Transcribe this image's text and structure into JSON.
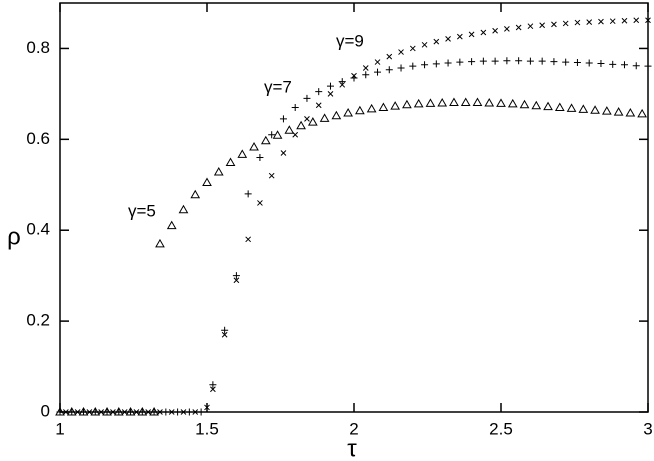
{
  "chart_data": {
    "type": "scatter",
    "x_label": "τ",
    "y_label": "ρ",
    "xlim": [
      1,
      3
    ],
    "ylim": [
      0,
      0.9
    ],
    "xticks": [
      1,
      1.5,
      2,
      2.5,
      3
    ],
    "yticks": [
      0,
      0.2,
      0.4,
      0.6,
      0.8
    ],
    "series": [
      {
        "name": "γ=5",
        "color": "#000000",
        "marker": "triangle",
        "x": [
          1.0,
          1.04,
          1.08,
          1.12,
          1.16,
          1.2,
          1.24,
          1.28,
          1.32,
          1.34,
          1.38,
          1.42,
          1.46,
          1.5,
          1.54,
          1.58,
          1.62,
          1.66,
          1.7,
          1.74,
          1.78,
          1.82,
          1.86,
          1.9,
          1.94,
          1.98,
          2.02,
          2.06,
          2.1,
          2.14,
          2.18,
          2.22,
          2.26,
          2.3,
          2.34,
          2.38,
          2.42,
          2.46,
          2.5,
          2.54,
          2.58,
          2.62,
          2.66,
          2.7,
          2.74,
          2.78,
          2.82,
          2.86,
          2.9,
          2.94,
          2.98
        ],
        "values": [
          0,
          0,
          0,
          0,
          0,
          0,
          0,
          0,
          0,
          0.37,
          0.41,
          0.445,
          0.478,
          0.505,
          0.528,
          0.549,
          0.567,
          0.583,
          0.597,
          0.609,
          0.62,
          0.63,
          0.638,
          0.646,
          0.652,
          0.658,
          0.663,
          0.667,
          0.67,
          0.673,
          0.676,
          0.678,
          0.679,
          0.68,
          0.681,
          0.681,
          0.681,
          0.68,
          0.679,
          0.678,
          0.676,
          0.674,
          0.672,
          0.67,
          0.668,
          0.666,
          0.664,
          0.662,
          0.66,
          0.658,
          0.656
        ]
      },
      {
        "name": "γ=7",
        "color": "#000000",
        "marker": "plus",
        "x": [
          1.0,
          1.04,
          1.08,
          1.12,
          1.16,
          1.2,
          1.24,
          1.28,
          1.32,
          1.36,
          1.4,
          1.44,
          1.48,
          1.52,
          1.56,
          1.6,
          1.64,
          1.68,
          1.72,
          1.76,
          1.8,
          1.84,
          1.88,
          1.92,
          1.96,
          2.0,
          2.04,
          2.08,
          2.12,
          2.16,
          2.2,
          2.24,
          2.28,
          2.32,
          2.36,
          2.4,
          2.44,
          2.48,
          2.52,
          2.56,
          2.6,
          2.64,
          2.68,
          2.72,
          2.76,
          2.8,
          2.84,
          2.88,
          2.92,
          2.96,
          3.0
        ],
        "values": [
          0,
          0,
          0,
          0,
          0,
          0,
          0,
          0,
          0,
          0,
          0,
          0,
          0,
          0.06,
          0.18,
          0.3,
          0.48,
          0.56,
          0.61,
          0.645,
          0.67,
          0.69,
          0.705,
          0.717,
          0.727,
          0.735,
          0.742,
          0.748,
          0.753,
          0.757,
          0.761,
          0.764,
          0.766,
          0.768,
          0.77,
          0.771,
          0.772,
          0.772,
          0.773,
          0.773,
          0.772,
          0.772,
          0.771,
          0.77,
          0.769,
          0.768,
          0.767,
          0.765,
          0.764,
          0.762,
          0.761
        ]
      },
      {
        "name": "γ=9",
        "color": "#000000",
        "marker": "cross",
        "x": [
          1.02,
          1.06,
          1.1,
          1.14,
          1.18,
          1.22,
          1.26,
          1.3,
          1.34,
          1.38,
          1.42,
          1.46,
          1.5,
          1.52,
          1.56,
          1.6,
          1.64,
          1.68,
          1.72,
          1.76,
          1.8,
          1.84,
          1.88,
          1.92,
          1.96,
          2.0,
          2.04,
          2.08,
          2.12,
          2.16,
          2.2,
          2.24,
          2.28,
          2.32,
          2.36,
          2.4,
          2.44,
          2.48,
          2.52,
          2.56,
          2.6,
          2.64,
          2.68,
          2.72,
          2.76,
          2.8,
          2.84,
          2.88,
          2.92,
          2.96,
          3.0
        ],
        "values": [
          0,
          0,
          0,
          0,
          0,
          0,
          0,
          0,
          0,
          0,
          0,
          0,
          0.01,
          0.05,
          0.17,
          0.29,
          0.38,
          0.46,
          0.52,
          0.57,
          0.61,
          0.645,
          0.675,
          0.7,
          0.72,
          0.74,
          0.757,
          0.77,
          0.782,
          0.792,
          0.8,
          0.808,
          0.815,
          0.821,
          0.826,
          0.831,
          0.835,
          0.839,
          0.843,
          0.846,
          0.849,
          0.851,
          0.853,
          0.855,
          0.857,
          0.858,
          0.859,
          0.86,
          0.861,
          0.862,
          0.862
        ]
      }
    ]
  }
}
